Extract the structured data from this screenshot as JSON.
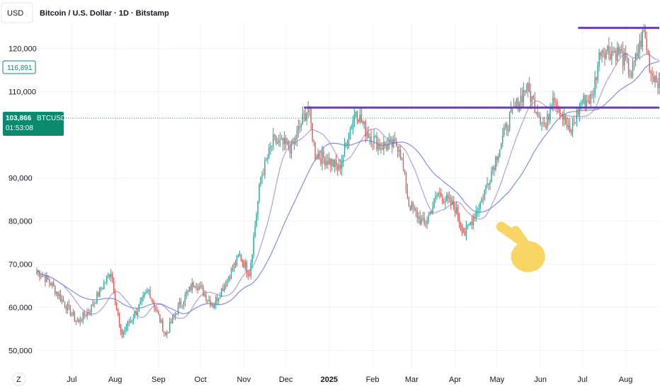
{
  "header": {
    "currency": "USD",
    "title": "Bitcoin / U.S. Dollar · 1D · Bitstamp"
  },
  "colors": {
    "up": "#26a69a",
    "down": "#ef5350",
    "ma_fast": "#b39ddb",
    "ma_slow": "#7b8ff0",
    "level": "#6a3cbc",
    "badge": "#0b8a70",
    "hand": "#f8d564"
  },
  "price_axis": {
    "ticks": [
      "120,000",
      "110,000",
      "90,000",
      "80,000",
      "70,000",
      "60,000",
      "50,000"
    ],
    "tick_values": [
      120000,
      110000,
      90000,
      80000,
      70000,
      60000,
      50000
    ],
    "ma_label": "116,891",
    "ma_label_value": 116891,
    "current_price": "103,866",
    "current_price_value": 103866,
    "symbol": "BTCUSD",
    "countdown": "01:53:08"
  },
  "time_axis": {
    "labels": [
      "Jul",
      "Aug",
      "Sep",
      "Oct",
      "Nov",
      "Dec",
      "2025",
      "Feb",
      "Mar",
      "Apr",
      "May",
      "Jun",
      "Jul",
      "Aug"
    ],
    "label_dates": [
      "2024-07-01",
      "2024-08-01",
      "2024-09-01",
      "2024-10-01",
      "2024-11-01",
      "2024-12-01",
      "2025-01-01",
      "2025-02-01",
      "2025-03-01",
      "2025-04-01",
      "2025-05-01",
      "2025-06-01",
      "2025-07-01",
      "2025-08-01"
    ],
    "tz_icon": "Z"
  },
  "chart_data": {
    "type": "candlestick",
    "x_range": [
      "2024-06-06",
      "2025-08-25"
    ],
    "ylim": [
      46000,
      126000
    ],
    "anchors": [
      [
        "2024-06-06",
        68500
      ],
      [
        "2024-06-15",
        66000
      ],
      [
        "2024-07-05",
        56500
      ],
      [
        "2024-07-14",
        59500
      ],
      [
        "2024-07-29",
        68500
      ],
      [
        "2024-08-05",
        53500
      ],
      [
        "2024-08-15",
        58500
      ],
      [
        "2024-08-25",
        64000
      ],
      [
        "2024-09-06",
        53500
      ],
      [
        "2024-09-15",
        60000
      ],
      [
        "2024-09-27",
        66000
      ],
      [
        "2024-10-10",
        60500
      ],
      [
        "2024-10-29",
        72000
      ],
      [
        "2024-11-05",
        68000
      ],
      [
        "2024-11-13",
        90000
      ],
      [
        "2024-11-22",
        98500
      ],
      [
        "2024-12-05",
        97000
      ],
      [
        "2024-12-17",
        106500
      ],
      [
        "2024-12-22",
        95500
      ],
      [
        "2025-01-01",
        94000
      ],
      [
        "2025-01-08",
        92000
      ],
      [
        "2025-01-20",
        106000
      ],
      [
        "2025-01-27",
        101000
      ],
      [
        "2025-02-06",
        97500
      ],
      [
        "2025-02-20",
        97500
      ],
      [
        "2025-02-27",
        84000
      ],
      [
        "2025-03-10",
        79000
      ],
      [
        "2025-03-20",
        86500
      ],
      [
        "2025-04-01",
        83000
      ],
      [
        "2025-04-08",
        77000
      ],
      [
        "2025-04-20",
        85000
      ],
      [
        "2025-04-30",
        94500
      ],
      [
        "2025-05-10",
        104000
      ],
      [
        "2025-05-22",
        111000
      ],
      [
        "2025-06-05",
        101500
      ],
      [
        "2025-06-10",
        110000
      ],
      [
        "2025-06-22",
        100000
      ],
      [
        "2025-06-30",
        107500
      ],
      [
        "2025-07-08",
        108500
      ],
      [
        "2025-07-14",
        120000
      ],
      [
        "2025-07-28",
        119000
      ],
      [
        "2025-08-05",
        114000
      ],
      [
        "2025-08-14",
        124000
      ],
      [
        "2025-08-19",
        114500
      ],
      [
        "2025-08-25",
        112500
      ]
    ],
    "moving_averages": [
      {
        "period": 20,
        "color": "#b39ddb"
      },
      {
        "period": 50,
        "color": "#7b8ff0"
      }
    ],
    "horizontal_levels": [
      {
        "value": 106300,
        "from": "2024-12-14",
        "to": "2025-08-25"
      },
      {
        "value": 124800,
        "from": "2025-06-28",
        "to": "2025-08-25"
      }
    ],
    "annotation": {
      "type": "hand-pointing-icon",
      "date": "2025-05-08",
      "value": 78000
    }
  }
}
